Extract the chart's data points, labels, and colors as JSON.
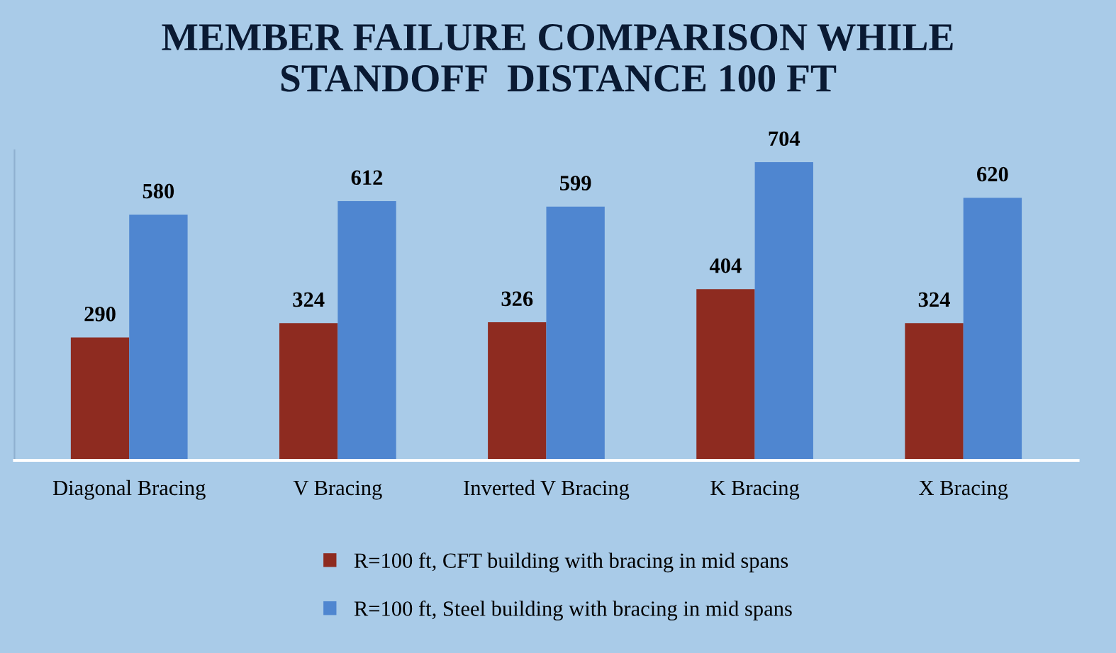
{
  "chart_data": {
    "type": "bar",
    "title": "MEMBER FAILURE COMPARISON WHILE\nSTANDOFF  DISTANCE 100 FT",
    "categories": [
      "Diagonal Bracing",
      "V Bracing",
      "Inverted V Bracing",
      "K Bracing",
      "X Bracing"
    ],
    "series": [
      {
        "name": "R=100 ft, CFT building with bracing in mid spans",
        "color": "#8e2b20",
        "values": [
          290,
          324,
          326,
          404,
          324
        ]
      },
      {
        "name": "R=100 ft, Steel building with bracing in mid spans",
        "color": "#4f86d0",
        "values": [
          580,
          612,
          599,
          704,
          620
        ]
      }
    ],
    "data_labels": true,
    "legend": "bottom",
    "grid": false
  }
}
